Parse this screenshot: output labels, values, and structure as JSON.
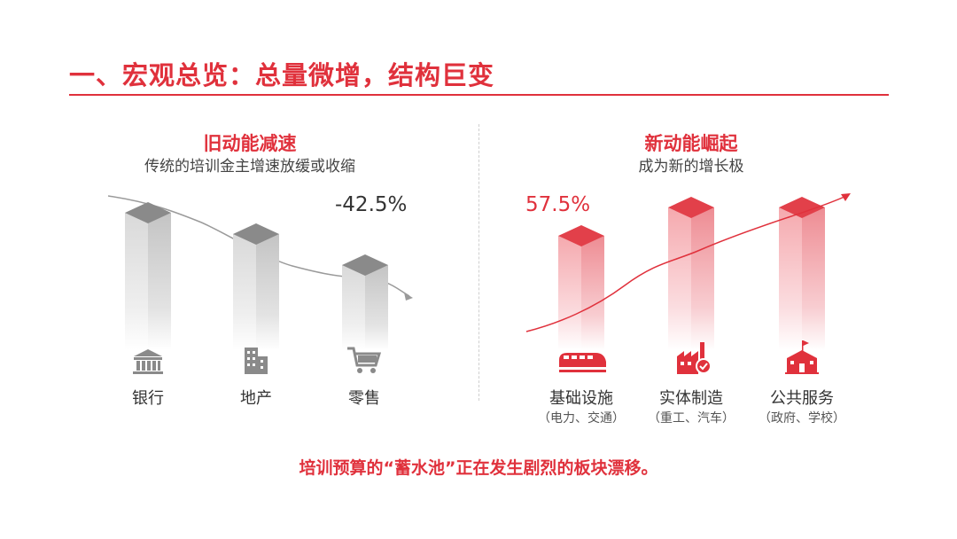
{
  "header": {
    "title": "一、宏观总览：总量微增，结构巨变"
  },
  "left": {
    "heading": "旧动能减速",
    "subheading": "传统的培训金主增速放缓或收缩",
    "change_label": "-42.5%",
    "items": [
      {
        "label": "银行",
        "icon": "bank-icon"
      },
      {
        "label": "地产",
        "icon": "building-icon"
      },
      {
        "label": "零售",
        "icon": "shopping-cart-icon"
      }
    ]
  },
  "right": {
    "heading": "新动能崛起",
    "subheading": "成为新的增长极",
    "change_label": "57.5%",
    "items": [
      {
        "label": "基础设施",
        "note": "（电力、交通）",
        "icon": "train-icon"
      },
      {
        "label": "实体制造",
        "note": "（重工、汽车）",
        "icon": "factory-icon"
      },
      {
        "label": "公共服务",
        "note": "（政府、学校）",
        "icon": "public-building-icon"
      }
    ]
  },
  "footer": {
    "text": "培训预算的“蓄水池”正在发生剧烈的板块漂移。"
  },
  "colors": {
    "accent": "#e0313c",
    "gray_top": "#8a8a8a",
    "red_top": "#e2404a"
  }
}
